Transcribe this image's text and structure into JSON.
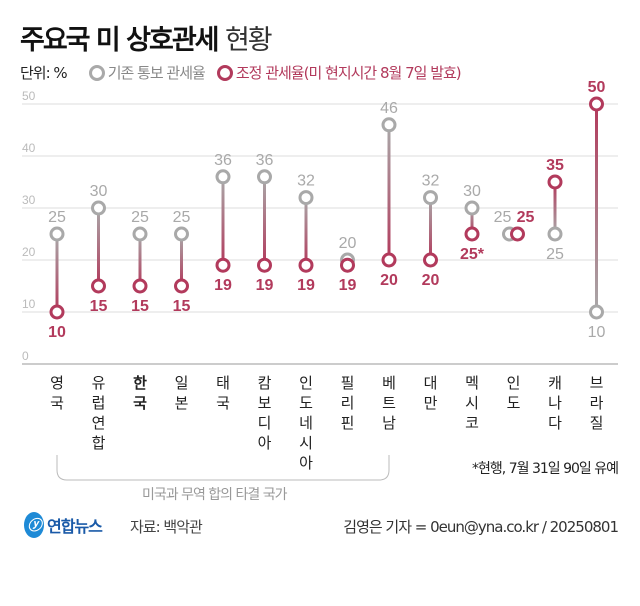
{
  "title": {
    "bold": "주요국 미 상호관세",
    "light": "현황"
  },
  "unit": "단위: %",
  "legend": {
    "original": "기존 통보 관세율",
    "adjusted": "조정 관세율(미 현지시간 8월 7일 발효)"
  },
  "colors": {
    "original": "#a9a9a9",
    "adjusted": "#b23a5c"
  },
  "note": "*현행, 7월 31일 90일 유예",
  "bracket_label": "미국과 무역 합의 타결 국가",
  "logo": "연합뉴스",
  "source": "자료: 백악관",
  "credit": "김영은 기자 = 0eun@yna.co.kr / 20250801",
  "chart_data": {
    "type": "dumbbell",
    "ylim": [
      0,
      50
    ],
    "yticks": [
      0,
      10,
      20,
      30,
      40,
      50
    ],
    "grid": true,
    "categories": [
      "영국",
      "유럽연합",
      "한국",
      "일본",
      "태국",
      "캄보디아",
      "인도네시아",
      "필리핀",
      "베트남",
      "대만",
      "멕시코",
      "인도",
      "캐나다",
      "브라질"
    ],
    "highlight": "한국",
    "series": [
      {
        "name": "기존 통보 관세율",
        "values": [
          25,
          30,
          25,
          25,
          36,
          36,
          32,
          20,
          46,
          32,
          30,
          25,
          25,
          10
        ]
      },
      {
        "name": "조정 관세율(미 현지시간 8월 7일 발효)",
        "values": [
          10,
          15,
          15,
          15,
          19,
          19,
          19,
          19,
          20,
          20,
          25,
          25,
          35,
          50
        ],
        "labels": [
          "10",
          "15",
          "15",
          "15",
          "19",
          "19",
          "19",
          "19",
          "20",
          "20",
          "25*",
          "25",
          "35",
          "50"
        ]
      }
    ]
  }
}
